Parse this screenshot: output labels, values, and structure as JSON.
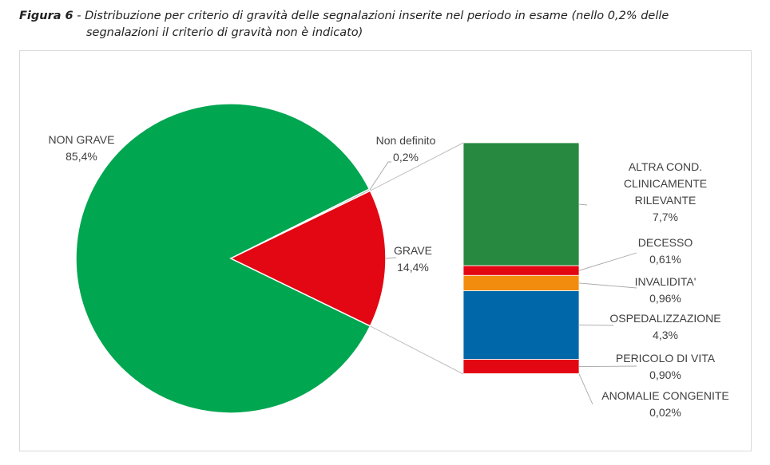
{
  "caption": {
    "figure_label": "Figura 6",
    "separator": " - ",
    "text_line1": "Distribuzione per criterio di gravità delle segnalazioni inserite nel periodo in esame (nello 0,2% delle",
    "text_line2": "segnalazioni il criterio di gravità non è indicato)"
  },
  "chart_data": {
    "type": "pie-of-bar",
    "pie": {
      "slices": [
        {
          "label": "NON GRAVE",
          "value": 85.4,
          "value_text": "85,4%",
          "color": "#00A650"
        },
        {
          "label": "GRAVE",
          "value": 14.4,
          "value_text": "14,4%",
          "color": "#E30613"
        },
        {
          "label": "Non definito",
          "value": 0.2,
          "value_text": "0,2%",
          "color": "#A6A6A6"
        }
      ]
    },
    "breakdown_of": "GRAVE",
    "bar": {
      "segments": [
        {
          "label_lines": [
            "ALTRA COND.",
            "CLINICAMENTE",
            "RILEVANTE"
          ],
          "value": 7.7,
          "value_text": "7,7%",
          "color": "#26893F"
        },
        {
          "label_lines": [
            "DECESSO"
          ],
          "value": 0.61,
          "value_text": "0,61%",
          "color": "#E30613"
        },
        {
          "label_lines": [
            "INVALIDITA'"
          ],
          "value": 0.96,
          "value_text": "0,96%",
          "color": "#F28C0F"
        },
        {
          "label_lines": [
            "OSPEDALIZZAZIONE"
          ],
          "value": 4.3,
          "value_text": "4,3%",
          "color": "#0068A8"
        },
        {
          "label_lines": [
            "PERICOLO DI VITA"
          ],
          "value": 0.9,
          "value_text": "0,90%",
          "color": "#E30613"
        },
        {
          "label_lines": [
            "ANOMALIE CONGENITE"
          ],
          "value": 0.02,
          "value_text": "0,02%",
          "color": "#E30613"
        }
      ]
    }
  }
}
